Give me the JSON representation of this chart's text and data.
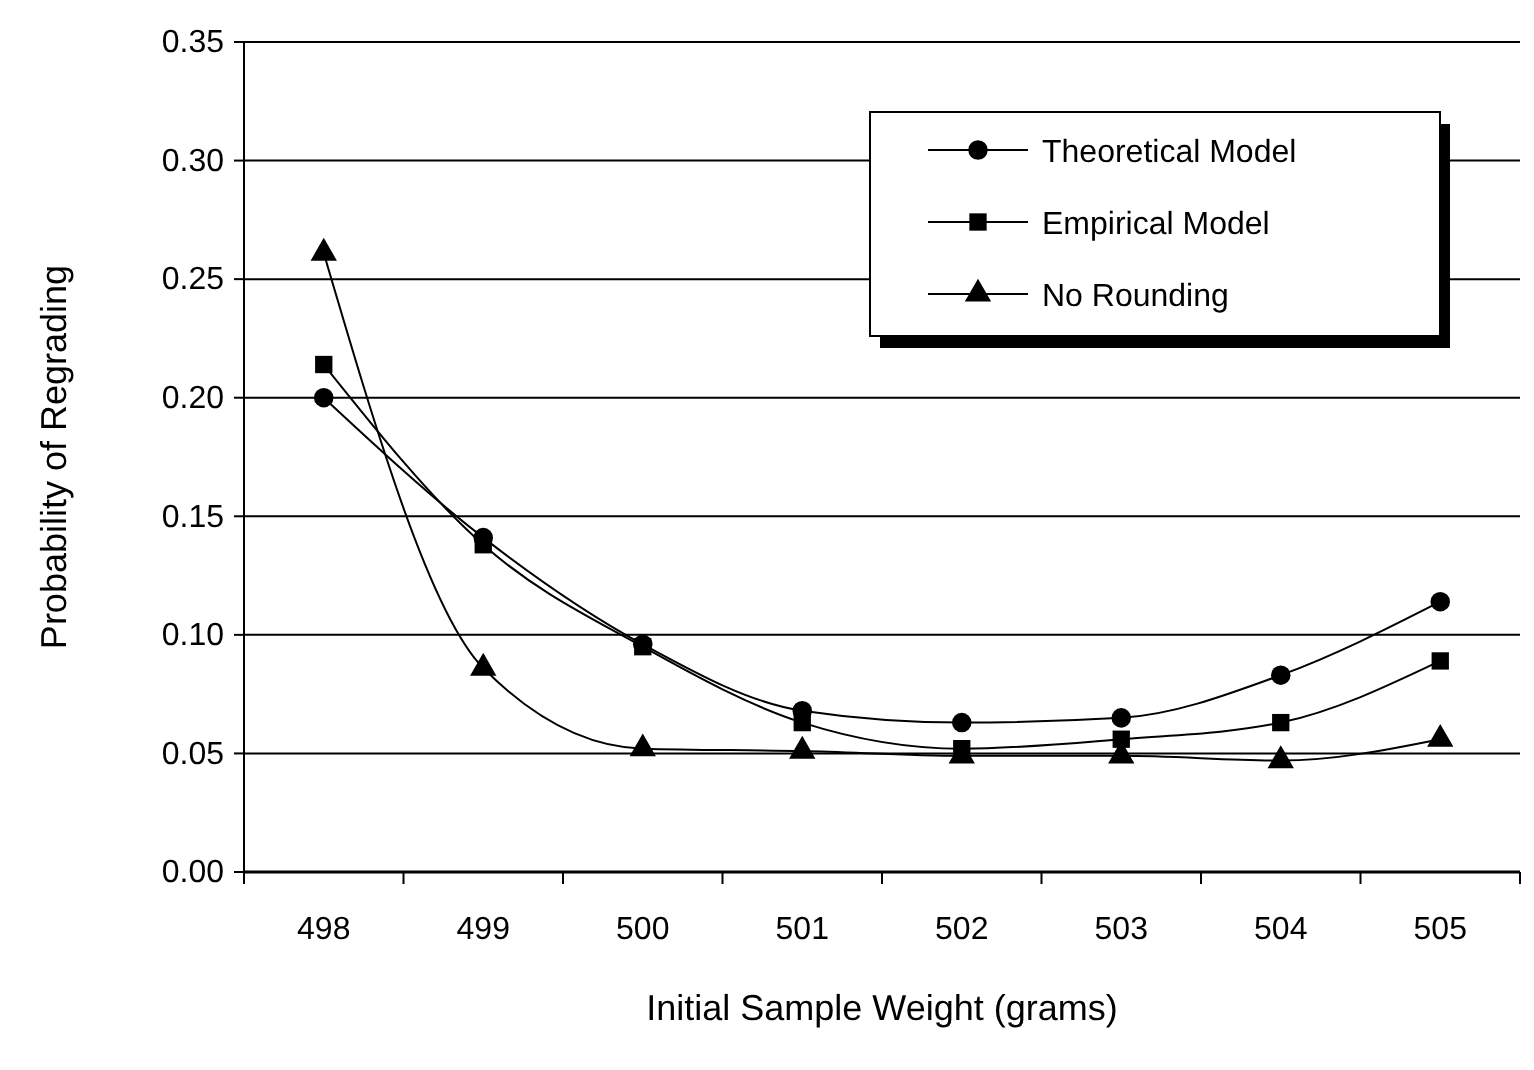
{
  "chart_data": {
    "type": "line",
    "xlabel": "Initial Sample Weight (grams)",
    "ylabel": "Probability of Regrading",
    "categories": [
      "498",
      "499",
      "500",
      "501",
      "502",
      "503",
      "504",
      "505"
    ],
    "series": [
      {
        "name": "Theoretical Model",
        "color": "#000000",
        "marker": "circle",
        "values": [
          0.2,
          0.141,
          0.096,
          0.068,
          0.063,
          0.065,
          0.083,
          0.114
        ]
      },
      {
        "name": "Empirical Model",
        "color": "#000000",
        "marker": "square",
        "values": [
          0.214,
          0.138,
          0.095,
          0.063,
          0.052,
          0.056,
          0.063,
          0.089
        ]
      },
      {
        "name": "No Rounding",
        "color": "#000000",
        "marker": "triangle",
        "values": [
          0.261,
          0.086,
          0.052,
          0.051,
          0.049,
          0.049,
          0.047,
          0.056
        ]
      }
    ],
    "ylim": [
      0,
      0.35
    ],
    "yticks": [
      {
        "value": 0,
        "label": "0.00"
      },
      {
        "value": 0.05,
        "label": "0.05"
      },
      {
        "value": 0.1,
        "label": "0.10"
      },
      {
        "value": 0.15,
        "label": "0.15"
      },
      {
        "value": 0.2,
        "label": "0.20"
      },
      {
        "value": 0.25,
        "label": "0.25"
      },
      {
        "value": 0.3,
        "label": "0.30"
      },
      {
        "value": 0.35,
        "label": "0.35"
      }
    ],
    "grid": "y",
    "legend": "top right",
    "line_style": "solid"
  }
}
